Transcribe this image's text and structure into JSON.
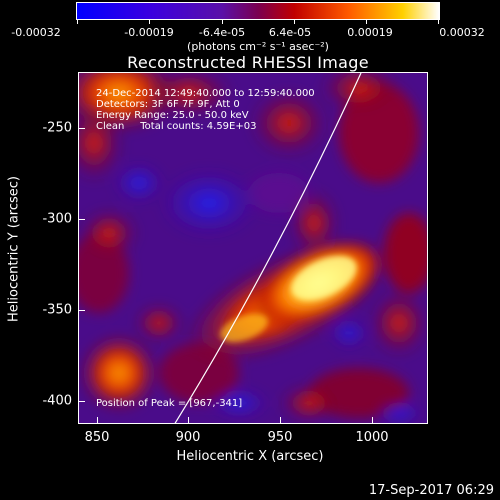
{
  "colorbar": {
    "tick_labels": [
      "-0.00032",
      "-0.00019",
      "-6.4e-05",
      "6.4e-05",
      "0.00019",
      "0.00032"
    ],
    "units": "(photons cm⁻² s⁻¹ asec⁻²)"
  },
  "title": "Reconstructed RHESSI Image",
  "info": {
    "time": "24-Dec-2014 12:49:40.000 to 12:59:40.000",
    "detectors": "Detectors: 3F 6F 7F 9F, Att 0",
    "energy": "Energy Range: 25.0 - 50.0 keV",
    "clean": "Clean     Total counts: 4.59E+03",
    "peak": "Position of Peak = [967,-341]"
  },
  "axes": {
    "xlabel": "Heliocentric X (arcsec)",
    "ylabel": "Heliocentric Y (arcsec)",
    "xticks": [
      "850",
      "900",
      "950",
      "1000"
    ],
    "yticks": [
      "-250",
      "-300",
      "-350",
      "-400"
    ]
  },
  "footer": "17-Sep-2017 06:29",
  "colors": {
    "background": "#000000",
    "limb_line": "#ffffff"
  }
}
